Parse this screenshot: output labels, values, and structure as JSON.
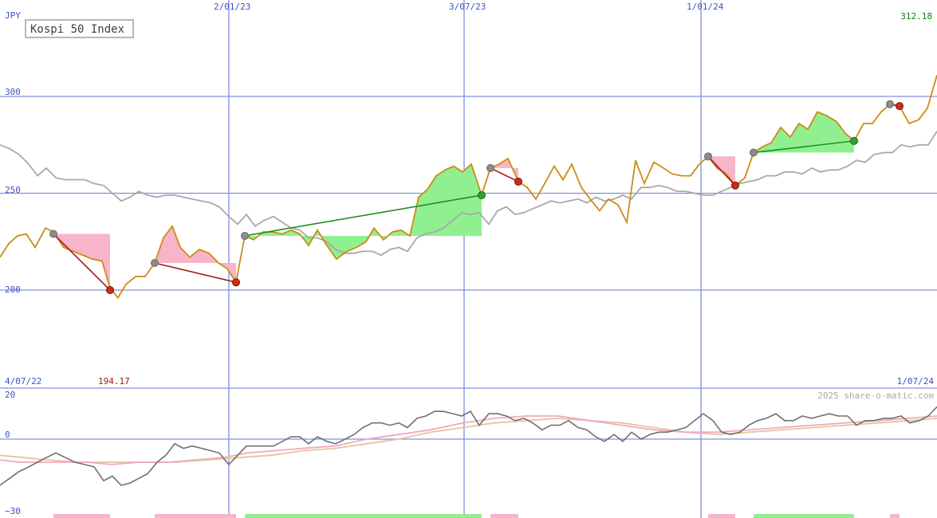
{
  "chart_data": {
    "type": "line",
    "title": "Kospi 50 Index",
    "currency": "JPY",
    "credit": "2025 share-o-matic.com",
    "x_tick_labels": [
      "2/01/23",
      "3/07/23",
      "1/01/24"
    ],
    "x_range_labels": [
      "4/07/22",
      "1/07/24"
    ],
    "y_tick_labels": [
      "300",
      "250",
      "200"
    ],
    "y_min_label": "194.17",
    "y_max_label": "312.18",
    "ylim": [
      155,
      340
    ],
    "grid": true,
    "colors": {
      "price": "#cc8c14",
      "ma": "#a8a8a8",
      "gain": "#90f090",
      "loss": "#f8b4c8",
      "gain_line": "#209020",
      "loss_line": "#a01818",
      "grid": "#8090e0",
      "osc": "#707070",
      "osc_pink": "#f0a8c0",
      "osc_tan": "#e0c898"
    },
    "price": [
      [
        0,
        217
      ],
      [
        11,
        224
      ],
      [
        22,
        228
      ],
      [
        33,
        229
      ],
      [
        44,
        222
      ],
      [
        57,
        232
      ],
      [
        67,
        230
      ],
      [
        80,
        222
      ],
      [
        92,
        220
      ],
      [
        104,
        218
      ],
      [
        116,
        216
      ],
      [
        128,
        215
      ],
      [
        138,
        201
      ],
      [
        148,
        196
      ],
      [
        158,
        203
      ],
      [
        170,
        207
      ],
      [
        182,
        207
      ],
      [
        194,
        214
      ],
      [
        205,
        227
      ],
      [
        216,
        233
      ],
      [
        226,
        222
      ],
      [
        238,
        217
      ],
      [
        250,
        221
      ],
      [
        262,
        219
      ],
      [
        274,
        214
      ],
      [
        285,
        211
      ],
      [
        296,
        204
      ],
      [
        307,
        228
      ],
      [
        318,
        226
      ],
      [
        330,
        230
      ],
      [
        342,
        230
      ],
      [
        354,
        229
      ],
      [
        365,
        231
      ],
      [
        376,
        229
      ],
      [
        387,
        223
      ],
      [
        398,
        231
      ],
      [
        410,
        223
      ],
      [
        422,
        216
      ],
      [
        435,
        220
      ],
      [
        447,
        222
      ],
      [
        459,
        225
      ],
      [
        469,
        232
      ],
      [
        481,
        226
      ],
      [
        492,
        230
      ],
      [
        503,
        231
      ],
      [
        514,
        228
      ],
      [
        525,
        248
      ],
      [
        536,
        252
      ],
      [
        547,
        259
      ],
      [
        558,
        262
      ],
      [
        569,
        264
      ],
      [
        580,
        261
      ],
      [
        591,
        265
      ],
      [
        604,
        249
      ],
      [
        615,
        263
      ],
      [
        626,
        265
      ],
      [
        637,
        268
      ],
      [
        650,
        256
      ],
      [
        661,
        253
      ],
      [
        672,
        247
      ],
      [
        683,
        255
      ],
      [
        695,
        264
      ],
      [
        706,
        257
      ],
      [
        717,
        265
      ],
      [
        729,
        253
      ],
      [
        740,
        247
      ],
      [
        752,
        241
      ],
      [
        763,
        247
      ],
      [
        775,
        244
      ],
      [
        786,
        235
      ],
      [
        797,
        267
      ],
      [
        808,
        255
      ],
      [
        820,
        266
      ],
      [
        832,
        263
      ],
      [
        843,
        260
      ],
      [
        855,
        259
      ],
      [
        866,
        259
      ],
      [
        877,
        265
      ],
      [
        888,
        269
      ],
      [
        899,
        263
      ],
      [
        911,
        260
      ],
      [
        922,
        254
      ],
      [
        934,
        258
      ],
      [
        945,
        271
      ],
      [
        956,
        274
      ],
      [
        967,
        276
      ],
      [
        979,
        284
      ],
      [
        991,
        279
      ],
      [
        1002,
        286
      ],
      [
        1013,
        283
      ],
      [
        1025,
        292
      ],
      [
        1037,
        290
      ],
      [
        1049,
        287
      ],
      [
        1060,
        281
      ],
      [
        1071,
        277
      ],
      [
        1083,
        286
      ],
      [
        1094,
        286
      ],
      [
        1105,
        292
      ],
      [
        1116,
        296
      ],
      [
        1128,
        295
      ],
      [
        1140,
        286
      ],
      [
        1152,
        288
      ],
      [
        1163,
        294
      ],
      [
        1175,
        311
      ]
    ],
    "moving_average": [
      [
        0,
        275
      ],
      [
        12,
        273
      ],
      [
        24,
        270
      ],
      [
        36,
        265
      ],
      [
        47,
        259
      ],
      [
        58,
        263
      ],
      [
        70,
        258
      ],
      [
        82,
        257
      ],
      [
        94,
        257
      ],
      [
        106,
        257
      ],
      [
        118,
        255
      ],
      [
        130,
        254
      ],
      [
        141,
        250
      ],
      [
        152,
        246
      ],
      [
        163,
        248
      ],
      [
        174,
        251
      ],
      [
        185,
        249
      ],
      [
        197,
        248
      ],
      [
        208,
        249
      ],
      [
        219,
        249
      ],
      [
        230,
        248
      ],
      [
        241,
        247
      ],
      [
        253,
        246
      ],
      [
        264,
        245
      ],
      [
        275,
        243
      ],
      [
        287,
        238
      ],
      [
        298,
        234
      ],
      [
        309,
        239
      ],
      [
        320,
        233
      ],
      [
        331,
        236
      ],
      [
        343,
        238
      ],
      [
        354,
        235
      ],
      [
        365,
        232
      ],
      [
        376,
        231
      ],
      [
        387,
        227
      ],
      [
        398,
        227
      ],
      [
        410,
        225
      ],
      [
        421,
        221
      ],
      [
        433,
        219
      ],
      [
        444,
        219
      ],
      [
        455,
        220
      ],
      [
        467,
        220
      ],
      [
        478,
        218
      ],
      [
        489,
        221
      ],
      [
        500,
        222
      ],
      [
        511,
        220
      ],
      [
        523,
        227
      ],
      [
        534,
        229
      ],
      [
        545,
        230
      ],
      [
        556,
        232
      ],
      [
        568,
        236
      ],
      [
        579,
        240
      ],
      [
        590,
        239
      ],
      [
        601,
        240
      ],
      [
        613,
        234
      ],
      [
        624,
        241
      ],
      [
        635,
        243
      ],
      [
        646,
        239
      ],
      [
        657,
        240
      ],
      [
        668,
        242
      ],
      [
        680,
        244
      ],
      [
        691,
        246
      ],
      [
        702,
        245
      ],
      [
        713,
        246
      ],
      [
        725,
        247
      ],
      [
        736,
        245
      ],
      [
        747,
        248
      ],
      [
        758,
        246
      ],
      [
        770,
        247
      ],
      [
        781,
        249
      ],
      [
        792,
        247
      ],
      [
        804,
        253
      ],
      [
        815,
        253
      ],
      [
        826,
        254
      ],
      [
        837,
        253
      ],
      [
        849,
        251
      ],
      [
        860,
        251
      ],
      [
        871,
        250
      ],
      [
        882,
        249
      ],
      [
        894,
        249
      ],
      [
        905,
        251
      ],
      [
        916,
        253
      ],
      [
        928,
        255
      ],
      [
        939,
        256
      ],
      [
        950,
        257
      ],
      [
        961,
        259
      ],
      [
        973,
        259
      ],
      [
        984,
        261
      ],
      [
        995,
        261
      ],
      [
        1006,
        260
      ],
      [
        1018,
        263
      ],
      [
        1029,
        261
      ],
      [
        1040,
        262
      ],
      [
        1051,
        262
      ],
      [
        1063,
        264
      ],
      [
        1074,
        267
      ],
      [
        1085,
        266
      ],
      [
        1096,
        270
      ],
      [
        1108,
        271
      ],
      [
        1119,
        271
      ],
      [
        1130,
        275
      ],
      [
        1141,
        274
      ],
      [
        1153,
        275
      ],
      [
        1164,
        275
      ],
      [
        1175,
        282
      ]
    ],
    "trades": [
      {
        "type": "loss",
        "entry": [
          67,
          229
        ],
        "exit": [
          138,
          200
        ]
      },
      {
        "type": "loss",
        "entry": [
          194,
          214
        ],
        "exit": [
          296,
          204
        ]
      },
      {
        "type": "gain",
        "entry": [
          307,
          228
        ],
        "exit": [
          604,
          249
        ]
      },
      {
        "type": "loss",
        "entry": [
          615,
          263
        ],
        "exit": [
          650,
          256
        ]
      },
      {
        "type": "loss",
        "entry": [
          888,
          269
        ],
        "exit": [
          922,
          254
        ]
      },
      {
        "type": "gain",
        "entry": [
          945,
          271
        ],
        "exit": [
          1071,
          277
        ]
      },
      {
        "type": "loss",
        "entry": [
          1116,
          296
        ],
        "exit": [
          1128,
          295
        ]
      }
    ],
    "oscillator": {
      "y_tick_labels": [
        "20",
        "0",
        "−30"
      ],
      "ylim": [
        -32,
        22
      ],
      "primary": [
        [
          0,
          -20
        ],
        [
          12,
          -17
        ],
        [
          24,
          -14
        ],
        [
          36,
          -12
        ],
        [
          47,
          -10
        ],
        [
          58,
          -8
        ],
        [
          70,
          -6
        ],
        [
          82,
          -8
        ],
        [
          94,
          -10
        ],
        [
          106,
          -11
        ],
        [
          118,
          -12
        ],
        [
          130,
          -18
        ],
        [
          141,
          -16
        ],
        [
          152,
          -20
        ],
        [
          163,
          -19
        ],
        [
          174,
          -17
        ],
        [
          185,
          -15
        ],
        [
          197,
          -10
        ],
        [
          208,
          -7
        ],
        [
          219,
          -2
        ],
        [
          230,
          -4
        ],
        [
          241,
          -3
        ],
        [
          253,
          -4
        ],
        [
          264,
          -5
        ],
        [
          275,
          -6
        ],
        [
          287,
          -11
        ],
        [
          298,
          -7
        ],
        [
          309,
          -3
        ],
        [
          320,
          -3
        ],
        [
          331,
          -3
        ],
        [
          343,
          -3
        ],
        [
          354,
          -1
        ],
        [
          365,
          1
        ],
        [
          376,
          1
        ],
        [
          387,
          -2
        ],
        [
          398,
          1
        ],
        [
          410,
          -1
        ],
        [
          421,
          -2
        ],
        [
          433,
          0
        ],
        [
          444,
          2
        ],
        [
          455,
          5
        ],
        [
          467,
          7
        ],
        [
          478,
          7
        ],
        [
          489,
          6
        ],
        [
          500,
          7
        ],
        [
          511,
          5
        ],
        [
          523,
          9
        ],
        [
          534,
          10
        ],
        [
          545,
          12
        ],
        [
          556,
          12
        ],
        [
          568,
          11
        ],
        [
          579,
          10
        ],
        [
          590,
          12
        ],
        [
          601,
          6
        ],
        [
          613,
          11
        ],
        [
          624,
          11
        ],
        [
          635,
          10
        ],
        [
          646,
          8
        ],
        [
          657,
          9
        ],
        [
          668,
          7
        ],
        [
          680,
          4
        ],
        [
          691,
          6
        ],
        [
          702,
          6
        ],
        [
          713,
          8
        ],
        [
          725,
          5
        ],
        [
          736,
          4
        ],
        [
          747,
          1
        ],
        [
          758,
          -1
        ],
        [
          770,
          2
        ],
        [
          781,
          -1
        ],
        [
          792,
          3
        ],
        [
          804,
          0
        ],
        [
          815,
          2
        ],
        [
          826,
          3
        ],
        [
          837,
          3
        ],
        [
          849,
          4
        ],
        [
          860,
          5
        ],
        [
          871,
          8
        ],
        [
          882,
          11
        ],
        [
          894,
          8
        ],
        [
          905,
          3
        ],
        [
          916,
          2
        ],
        [
          928,
          3
        ],
        [
          939,
          6
        ],
        [
          950,
          8
        ],
        [
          961,
          9
        ],
        [
          973,
          11
        ],
        [
          984,
          8
        ],
        [
          995,
          8
        ],
        [
          1006,
          10
        ],
        [
          1018,
          9
        ],
        [
          1029,
          10
        ],
        [
          1040,
          11
        ],
        [
          1051,
          10
        ],
        [
          1063,
          10
        ],
        [
          1074,
          6
        ],
        [
          1085,
          8
        ],
        [
          1096,
          8
        ],
        [
          1108,
          9
        ],
        [
          1119,
          9
        ],
        [
          1130,
          10
        ],
        [
          1141,
          7
        ],
        [
          1153,
          8
        ],
        [
          1164,
          10
        ],
        [
          1175,
          14
        ]
      ],
      "signal_pink": [
        [
          0,
          -9
        ],
        [
          25,
          -10
        ],
        [
          50,
          -10
        ],
        [
          80,
          -10
        ],
        [
          110,
          -10
        ],
        [
          140,
          -11
        ],
        [
          175,
          -10
        ],
        [
          210,
          -10
        ],
        [
          245,
          -9
        ],
        [
          280,
          -8
        ],
        [
          310,
          -6
        ],
        [
          345,
          -5
        ],
        [
          380,
          -4
        ],
        [
          420,
          -3
        ],
        [
          460,
          0
        ],
        [
          500,
          2
        ],
        [
          540,
          4
        ],
        [
          580,
          7
        ],
        [
          620,
          9
        ],
        [
          660,
          10
        ],
        [
          700,
          10
        ],
        [
          740,
          8
        ],
        [
          780,
          6
        ],
        [
          820,
          4
        ],
        [
          860,
          3
        ],
        [
          900,
          3
        ],
        [
          940,
          4
        ],
        [
          980,
          5
        ],
        [
          1020,
          6
        ],
        [
          1060,
          7
        ],
        [
          1100,
          8
        ],
        [
          1140,
          9
        ],
        [
          1175,
          10
        ]
      ],
      "signal_tan": [
        [
          0,
          -7
        ],
        [
          30,
          -8
        ],
        [
          60,
          -9
        ],
        [
          100,
          -10
        ],
        [
          140,
          -10
        ],
        [
          180,
          -10
        ],
        [
          220,
          -10
        ],
        [
          260,
          -9
        ],
        [
          300,
          -8
        ],
        [
          340,
          -7
        ],
        [
          380,
          -5
        ],
        [
          420,
          -4
        ],
        [
          460,
          -2
        ],
        [
          500,
          0
        ],
        [
          540,
          3
        ],
        [
          580,
          5
        ],
        [
          620,
          7
        ],
        [
          660,
          8
        ],
        [
          700,
          9
        ],
        [
          740,
          8
        ],
        [
          780,
          7
        ],
        [
          820,
          5
        ],
        [
          860,
          3
        ],
        [
          900,
          2
        ],
        [
          940,
          3
        ],
        [
          980,
          4
        ],
        [
          1020,
          5
        ],
        [
          1060,
          6
        ],
        [
          1100,
          7
        ],
        [
          1140,
          8
        ],
        [
          1175,
          9
        ]
      ]
    }
  }
}
